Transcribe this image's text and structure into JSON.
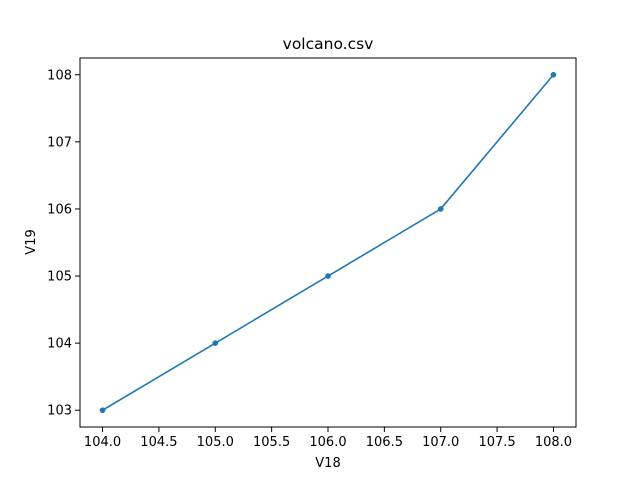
{
  "chart_data": {
    "type": "line",
    "title": "volcano.csv",
    "xlabel": "V18",
    "ylabel": "V19",
    "x": [
      104,
      105,
      106,
      107,
      108
    ],
    "series": [
      {
        "values": [
          103,
          104,
          105,
          106,
          108
        ]
      }
    ],
    "xlim": [
      103.8,
      108.2
    ],
    "ylim": [
      102.75,
      108.25
    ],
    "xticks": [
      "104.0",
      "104.5",
      "105.0",
      "105.5",
      "106.0",
      "106.5",
      "107.0",
      "107.5",
      "108.0"
    ],
    "yticks": [
      "103",
      "104",
      "105",
      "106",
      "107",
      "108"
    ],
    "grid": false,
    "line_color": "#1f77b4",
    "marker": "circle"
  }
}
